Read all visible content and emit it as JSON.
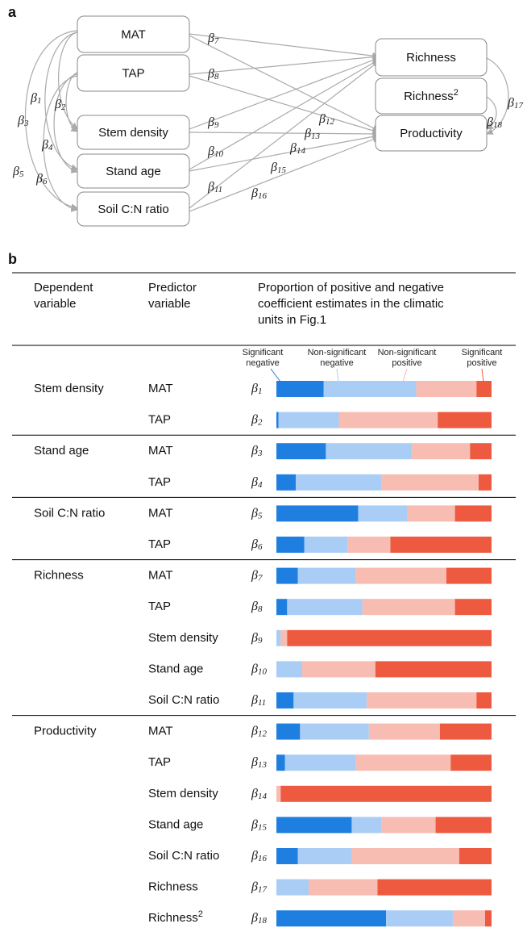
{
  "panel_a": "a",
  "panel_b": "b",
  "beta_symbol": "β",
  "diagram": {
    "nodes": [
      {
        "label": "MAT"
      },
      {
        "label": "TAP"
      },
      {
        "label": "Stem density"
      },
      {
        "label": "Stand age"
      },
      {
        "label": "Soil C:N ratio"
      },
      {
        "label": "Richness"
      },
      {
        "label": "Richness",
        "sup": "2"
      },
      {
        "label": "Productivity"
      }
    ],
    "coefficients": [
      "1",
      "2",
      "3",
      "4",
      "5",
      "6",
      "7",
      "8",
      "9",
      "10",
      "11",
      "12",
      "13",
      "14",
      "15",
      "16",
      "17",
      "18"
    ]
  },
  "table": {
    "headers": [
      [
        "Dependent",
        "variable"
      ],
      [
        "Predictor",
        "variable"
      ],
      [
        "Proportion of positive and negative",
        "coefficient estimates in the climatic",
        "units in Fig.1"
      ]
    ],
    "legend": [
      {
        "lines": [
          "Significant",
          "negative"
        ],
        "color": "#1f7fe0"
      },
      {
        "lines": [
          "Non-significant",
          "negative"
        ],
        "color": "#a9cdf5"
      },
      {
        "lines": [
          "Non-significant",
          "positive"
        ],
        "color": "#f7bcb2"
      },
      {
        "lines": [
          "Significant",
          "positive"
        ],
        "color": "#ee5a40"
      }
    ],
    "groups": [
      {
        "dependent": "Stem density",
        "rows": [
          {
            "predictor": "MAT",
            "beta": "1",
            "values": [
              22,
              43,
              28,
              7
            ]
          },
          {
            "predictor": "TAP",
            "beta": "2",
            "values": [
              1,
              28,
              46,
              25
            ]
          }
        ]
      },
      {
        "dependent": "Stand age",
        "rows": [
          {
            "predictor": "MAT",
            "beta": "3",
            "values": [
              23,
              40,
              27,
              10
            ]
          },
          {
            "predictor": "TAP",
            "beta": "4",
            "values": [
              9,
              40,
              45,
              6
            ]
          }
        ]
      },
      {
        "dependent": "Soil C:N ratio",
        "rows": [
          {
            "predictor": "MAT",
            "beta": "5",
            "values": [
              38,
              23,
              22,
              17
            ]
          },
          {
            "predictor": "TAP",
            "beta": "6",
            "values": [
              13,
              20,
              20,
              47
            ]
          }
        ]
      },
      {
        "dependent": "Richness",
        "rows": [
          {
            "predictor": "MAT",
            "beta": "7",
            "values": [
              10,
              27,
              42,
              21
            ]
          },
          {
            "predictor": "TAP",
            "beta": "8",
            "values": [
              5,
              35,
              43,
              17
            ]
          },
          {
            "predictor": "Stem density",
            "beta": "9",
            "values": [
              0,
              2,
              3,
              95
            ]
          },
          {
            "predictor": "Stand age",
            "beta": "10",
            "values": [
              0,
              12,
              34,
              54
            ]
          },
          {
            "predictor": "Soil C:N ratio",
            "beta": "11",
            "values": [
              8,
              34,
              51,
              7
            ]
          }
        ]
      },
      {
        "dependent": "Productivity",
        "rows": [
          {
            "predictor": "MAT",
            "beta": "12",
            "values": [
              11,
              32,
              33,
              24
            ]
          },
          {
            "predictor": "TAP",
            "beta": "13",
            "values": [
              4,
              33,
              44,
              19
            ]
          },
          {
            "predictor": "Stem density",
            "beta": "14",
            "values": [
              0,
              0,
              2,
              98
            ]
          },
          {
            "predictor": "Stand age",
            "beta": "15",
            "values": [
              35,
              14,
              25,
              26
            ]
          },
          {
            "predictor": "Soil C:N ratio",
            "beta": "16",
            "values": [
              10,
              25,
              50,
              15
            ]
          },
          {
            "predictor": "Richness",
            "beta": "17",
            "values": [
              0,
              15,
              32,
              53
            ]
          },
          {
            "predictor": "Richness",
            "sup": "2",
            "beta": "18",
            "values": [
              51,
              31,
              15,
              3
            ]
          }
        ]
      }
    ]
  }
}
